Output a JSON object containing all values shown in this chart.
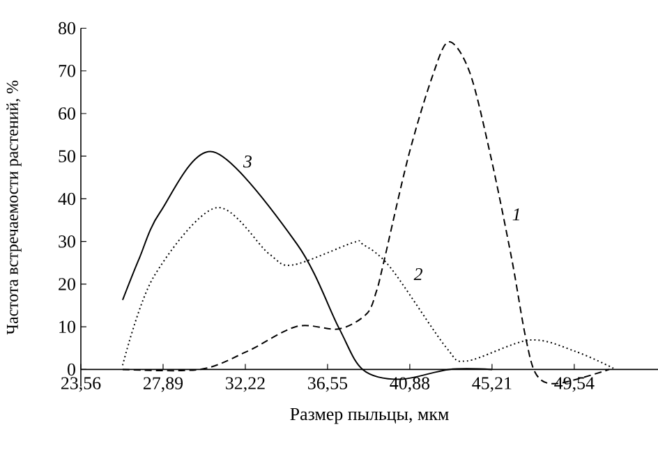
{
  "chart_data": {
    "type": "line",
    "xlabel": "Размер пыльцы, мкм",
    "ylabel": "Частота встречаемости растений, %",
    "xlim": [
      23.56,
      53.95
    ],
    "ylim": [
      -4,
      80
    ],
    "xticks": [
      {
        "value": 23.56,
        "label": "23,56"
      },
      {
        "value": 27.89,
        "label": "27,89"
      },
      {
        "value": 32.22,
        "label": "32,22"
      },
      {
        "value": 36.55,
        "label": "36,55"
      },
      {
        "value": 40.88,
        "label": "40,88"
      },
      {
        "value": 45.21,
        "label": "45,21"
      },
      {
        "value": 49.54,
        "label": "49,54"
      }
    ],
    "yticks": [
      0,
      10,
      20,
      30,
      40,
      50,
      60,
      70,
      80
    ],
    "marker": "none",
    "series": [
      {
        "name": "1",
        "color": "#000000",
        "line_style": "dashed",
        "x": [
          25.76,
          29.8,
          32.3,
          34.94,
          37.14,
          38.6,
          39.12,
          39.49,
          40.81,
          42.06,
          42.94,
          44.04,
          45.14,
          46.24,
          46.98,
          47.56,
          48.66,
          51.38
        ],
        "values": [
          0,
          0,
          4.2,
          10.1,
          9.5,
          13,
          18.3,
          24.8,
          50,
          68.6,
          76.8,
          69.6,
          50,
          26.1,
          7.5,
          -1.3,
          -3.3,
          0
        ]
      },
      {
        "name": "2",
        "color": "#000000",
        "line_style": "dotted",
        "x": [
          25.76,
          27.38,
          30.68,
          33.47,
          34.72,
          37.87,
          38.39,
          39.86,
          42.79,
          43.89,
          47.2,
          49.62,
          51.6
        ],
        "values": [
          1,
          21.6,
          37.9,
          27.1,
          24.5,
          29.7,
          29.4,
          23.9,
          5.2,
          2,
          6.9,
          4.2,
          0.3
        ]
      },
      {
        "name": "3",
        "color": "#000000",
        "line_style": "solid",
        "x": [
          25.76,
          26.64,
          27.74,
          30.53,
          34.94,
          37.14,
          38.4,
          40.37,
          42.94,
          45.21
        ],
        "values": [
          16.3,
          26.1,
          36.9,
          51,
          29.4,
          9.8,
          0,
          -2.3,
          0,
          0
        ]
      }
    ]
  }
}
